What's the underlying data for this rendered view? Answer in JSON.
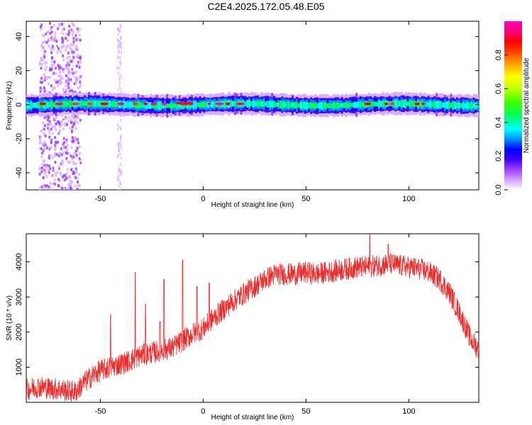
{
  "figure": {
    "title": "C2E4.2025.172.05.48.E05"
  },
  "chart_data": [
    {
      "type": "heatmap",
      "xlabel": "Height of straight line (km)",
      "ylabel": "Frequency (Hz)",
      "xlim": [
        -86,
        134
      ],
      "ylim": [
        -50,
        49
      ],
      "xticks": [
        -50,
        0,
        50,
        100
      ],
      "yticks": [
        -40,
        -20,
        0,
        20,
        40
      ],
      "colorbar": {
        "label": "Normalized spectral amplitude",
        "range": [
          0,
          1
        ],
        "ticks": [
          "0.0",
          "0.2",
          "0.4",
          "0.6",
          "0.8"
        ],
        "colormap": [
          "#ffffff",
          "#d9b0ff",
          "#a040ff",
          "#4000ff",
          "#0000ff",
          "#0090ff",
          "#00ffff",
          "#00ff60",
          "#40ff00",
          "#c0ff00",
          "#ffff00",
          "#ffa000",
          "#ff4000",
          "#ff0000",
          "#ff0080",
          "#ff00c0"
        ]
      },
      "grid": false,
      "description_bands": {
        "main_band_center_hz": 0,
        "main_band_halfwidth_hz": 4,
        "noise_burst_x_range": [
          -80,
          -60
        ],
        "noise_burst_x_2": -41
      }
    },
    {
      "type": "line",
      "xlabel": "Height of straight line (km)",
      "ylabel": "SNR (10 * v/v)",
      "xlim": [
        -86,
        134
      ],
      "ylim": [
        0,
        4800
      ],
      "xticks": [
        -50,
        0,
        50,
        100
      ],
      "yticks": [
        1000,
        2000,
        3000,
        4000
      ],
      "grid": false,
      "series": [
        {
          "color": "#e82e2e",
          "x": [
            -86,
            -80,
            -75,
            -70,
            -66,
            -62,
            -58,
            -54,
            -50,
            -45,
            -40,
            -35,
            -30,
            -25,
            -20,
            -15,
            -10,
            -5,
            0,
            5,
            10,
            15,
            20,
            25,
            30,
            35,
            40,
            45,
            50,
            55,
            60,
            65,
            70,
            75,
            80,
            85,
            90,
            95,
            100,
            105,
            110,
            115,
            120,
            125,
            130,
            134
          ],
          "y": [
            350,
            450,
            400,
            380,
            330,
            300,
            550,
            750,
            900,
            1000,
            1100,
            1200,
            1350,
            1400,
            1500,
            1550,
            1750,
            1950,
            2100,
            2400,
            2650,
            2900,
            3100,
            3300,
            3500,
            3650,
            3650,
            3650,
            3700,
            3650,
            3700,
            3750,
            3800,
            3850,
            3850,
            3900,
            3950,
            3900,
            3850,
            3800,
            3700,
            3500,
            3100,
            2500,
            1800,
            1500
          ],
          "noise_amplitude": 400,
          "spikes": [
            [
              -45,
              2500
            ],
            [
              -33,
              3700
            ],
            [
              -28,
              2800
            ],
            [
              -21,
              2300
            ],
            [
              -19,
              3500
            ],
            [
              -10,
              4050
            ],
            [
              -3,
              3300
            ],
            [
              3,
              3400
            ],
            [
              81,
              4800
            ],
            [
              90,
              4500
            ]
          ]
        }
      ]
    }
  ]
}
